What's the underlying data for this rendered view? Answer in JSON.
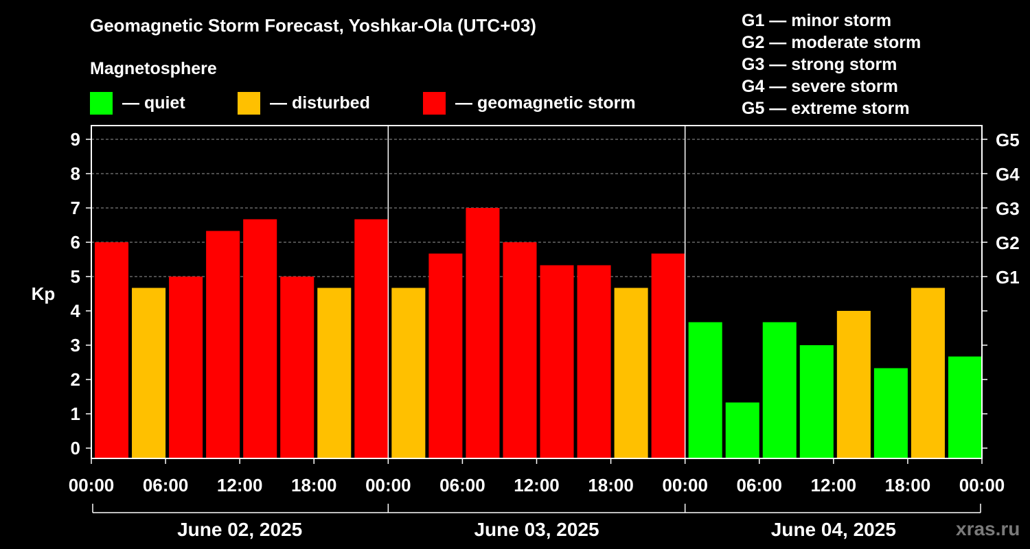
{
  "title": "Geomagnetic Storm Forecast, Yoshkar-Ola (UTC+03)",
  "magnetosphere_label": "Magnetosphere",
  "legend": [
    {
      "label": "— quiet",
      "color": "#00ff00"
    },
    {
      "label": "— disturbed",
      "color": "#ffc000"
    },
    {
      "label": "— geomagnetic storm",
      "color": "#ff0000"
    }
  ],
  "g_scale_legend": [
    "G1 — minor storm",
    "G2 — moderate storm",
    "G3 — strong storm",
    "G4 — severe storm",
    "G5 — extreme storm"
  ],
  "watermark": "xras.ru",
  "colors": {
    "quiet": "#00ff00",
    "disturbed": "#ffc000",
    "storm": "#ff0000",
    "background": "#000000"
  },
  "chart_data": {
    "type": "bar",
    "ylabel": "Kp",
    "ylim": [
      -0.3,
      9.4
    ],
    "yticks": [
      "0",
      "1",
      "2",
      "3",
      "4",
      "5",
      "6",
      "7",
      "8",
      "9"
    ],
    "right_ticks": [
      {
        "value": 5,
        "label": "G1"
      },
      {
        "value": 6,
        "label": "G2"
      },
      {
        "value": 7,
        "label": "G3"
      },
      {
        "value": 8,
        "label": "G4"
      },
      {
        "value": 9,
        "label": "G5"
      }
    ],
    "xticks": [
      "00:00",
      "06:00",
      "12:00",
      "18:00",
      "00:00",
      "06:00",
      "12:00",
      "18:00",
      "00:00",
      "06:00",
      "12:00",
      "18:00",
      "00:00"
    ],
    "days": [
      "June 02, 2025",
      "June 03, 2025",
      "June 04, 2025"
    ],
    "interval_hours": 3,
    "grid": "dashed horizontal at G levels",
    "values": [
      6.0,
      4.67,
      5.0,
      6.33,
      6.67,
      5.0,
      4.67,
      6.67,
      4.67,
      5.67,
      7.0,
      6.0,
      5.33,
      5.33,
      4.67,
      5.67,
      3.67,
      1.33,
      3.67,
      3.0,
      4.0,
      2.33,
      4.67,
      2.67
    ],
    "levels": [
      "storm",
      "disturbed",
      "storm",
      "storm",
      "storm",
      "storm",
      "disturbed",
      "storm",
      "disturbed",
      "storm",
      "storm",
      "storm",
      "storm",
      "storm",
      "disturbed",
      "storm",
      "quiet",
      "quiet",
      "quiet",
      "quiet",
      "disturbed",
      "quiet",
      "disturbed",
      "quiet"
    ]
  }
}
